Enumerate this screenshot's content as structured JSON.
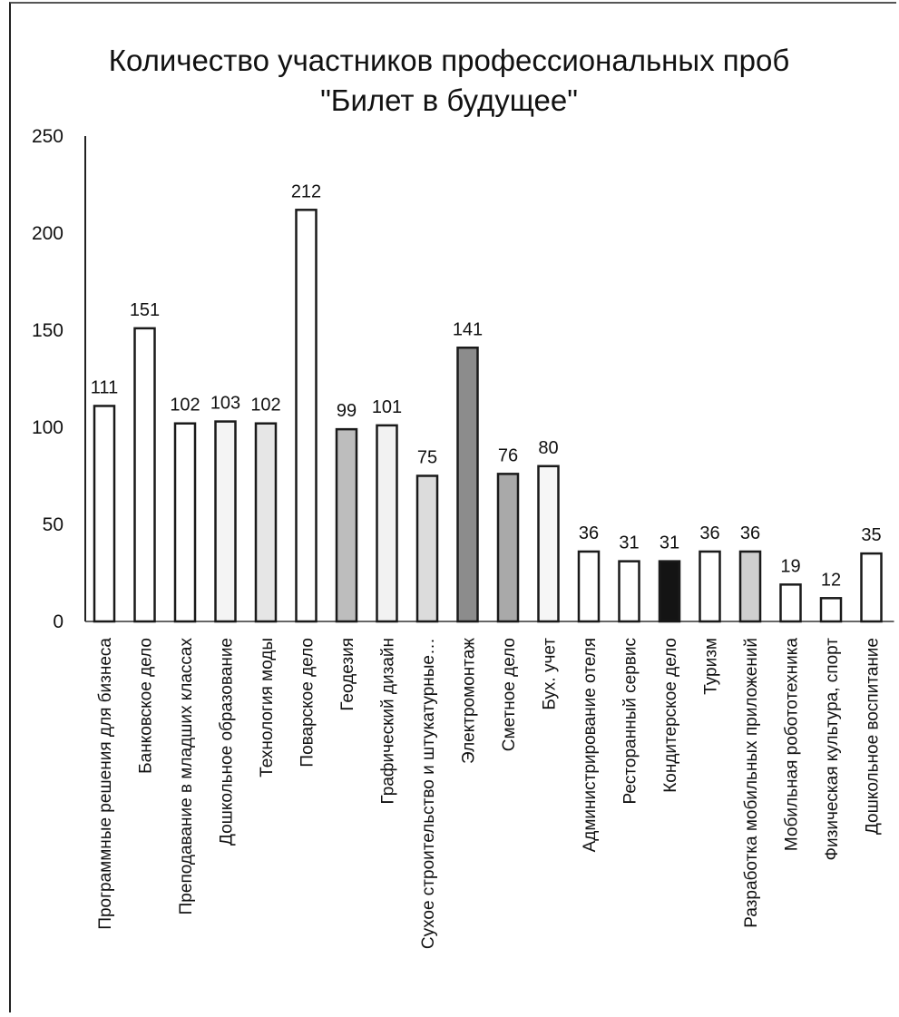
{
  "chart_data": {
    "type": "bar",
    "title_lines": [
      "Количество участников профессиональных проб",
      "\"Билет в будущее\""
    ],
    "xlabel": "",
    "ylabel": "",
    "ylim": [
      0,
      250
    ],
    "yticks": [
      0,
      50,
      100,
      150,
      200,
      250
    ],
    "grid": false,
    "legend": "none",
    "categories": [
      "Программные решения для бизнеса",
      "Банковское дело",
      "Преподавание в младших классах",
      "Дошкольное образование",
      "Технология моды",
      "Поварское дело",
      "Геодезия",
      "Графический дизайн",
      "Сухое строительство и штукатурные…",
      "Электромонтаж",
      "Сметное дело",
      "Бух. учет",
      "Администрирование отеля",
      "Ресторанный сервис",
      "Кондитерское дело",
      "Туризм",
      "Разработка мобильных приложений",
      "Мобильная робототехника",
      "Физическая культура, спорт",
      "Дошкольное воспитание"
    ],
    "values": [
      111,
      151,
      102,
      103,
      102,
      212,
      99,
      101,
      75,
      141,
      76,
      80,
      36,
      31,
      31,
      36,
      36,
      19,
      12,
      35
    ],
    "fills": [
      "#ffffff",
      "#ffffff",
      "#ffffff",
      "#f4f4f4",
      "#e6e6e6",
      "#ffffff",
      "#bdbdbd",
      "#f2f2f2",
      "#dcdcdc",
      "#8c8c8c",
      "#a9a9a9",
      "#f6f6f6",
      "#ffffff",
      "#ffffff",
      "#141414",
      "#ffffff",
      "#cfcfcf",
      "#ffffff",
      "#ffffff",
      "#ffffff"
    ]
  }
}
